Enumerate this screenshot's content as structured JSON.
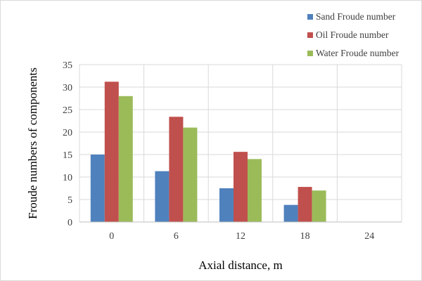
{
  "chart_data": {
    "type": "bar",
    "xlabel": "Axial distance, m",
    "ylabel": "Froude numbers of components",
    "categories": [
      "0",
      "6",
      "12",
      "18",
      "24"
    ],
    "ylim": [
      0,
      35
    ],
    "yticks": [
      0,
      5,
      10,
      15,
      20,
      25,
      30,
      35
    ],
    "grid": true,
    "legend_position": "top-right",
    "series": [
      {
        "name": "Sand Froude number",
        "color": "#4f81bd",
        "values": [
          15.0,
          11.3,
          7.5,
          3.8,
          0
        ]
      },
      {
        "name": "Oil Froude number",
        "color": "#c0504d",
        "values": [
          31.2,
          23.4,
          15.6,
          7.8,
          0
        ]
      },
      {
        "name": "Water Froude number",
        "color": "#9bbb59",
        "values": [
          28.0,
          21.0,
          14.0,
          7.0,
          0
        ]
      }
    ]
  }
}
